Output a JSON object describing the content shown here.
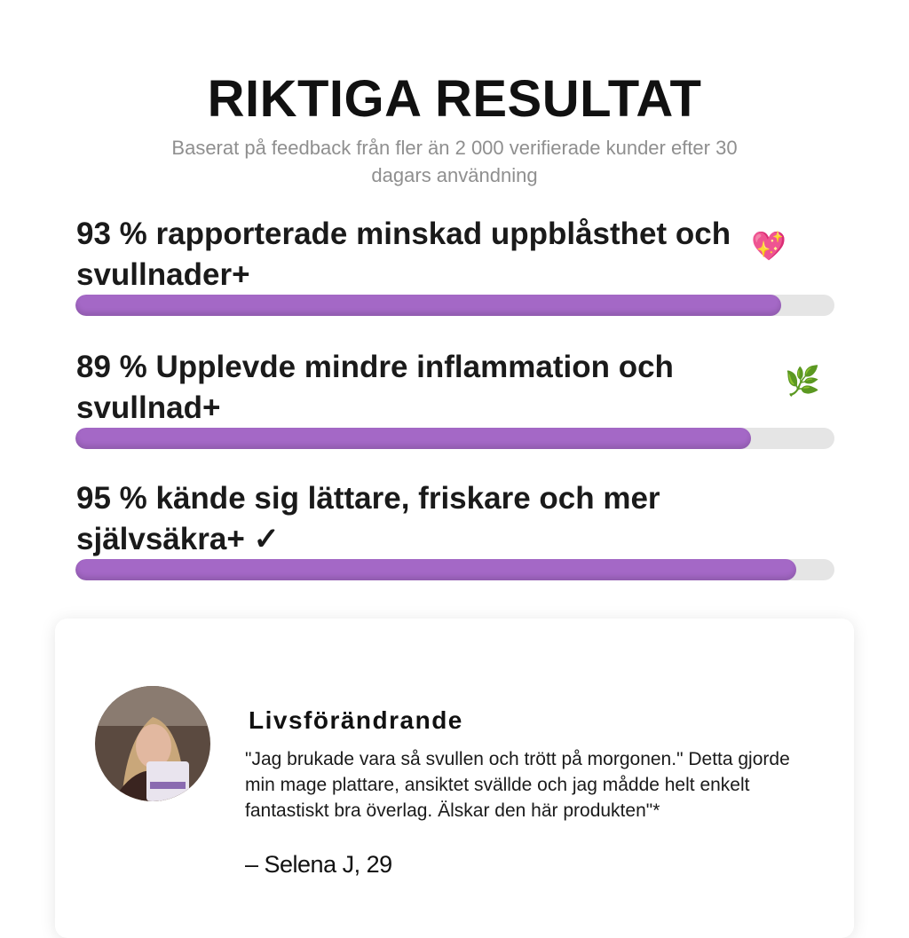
{
  "header": {
    "title": "RIKTIGA RESULTAT",
    "subtitle": "Baserat på feedback från fler än 2 000 verifierade kunder efter 30 dagars användning"
  },
  "stats": {
    "xlim": [
      0,
      100
    ],
    "color": "#a468c6",
    "track_color": "#e5e5e5",
    "items": [
      {
        "text": "93 % rapporterade minskad uppblåsthet och svullnader+",
        "icon": "💖",
        "value": 93
      },
      {
        "text": "89 % Upplevde mindre inflammation och svullnad+",
        "icon": "🌿",
        "value": 89
      },
      {
        "text": "95 % kände sig lättare, friskare och mer självsäkra+ ✓",
        "icon": null,
        "value": 95
      }
    ]
  },
  "testimonial": {
    "heading": "Livsförändrande",
    "quote": "\"Jag brukade vara så svullen och trött på morgonen.\" Detta gjorde min mage plattare, ansiktet svällde och jag mådde helt enkelt fantastiskt bra överlag. Älskar den här produkten\"*",
    "author": "– Selena J, 29"
  }
}
